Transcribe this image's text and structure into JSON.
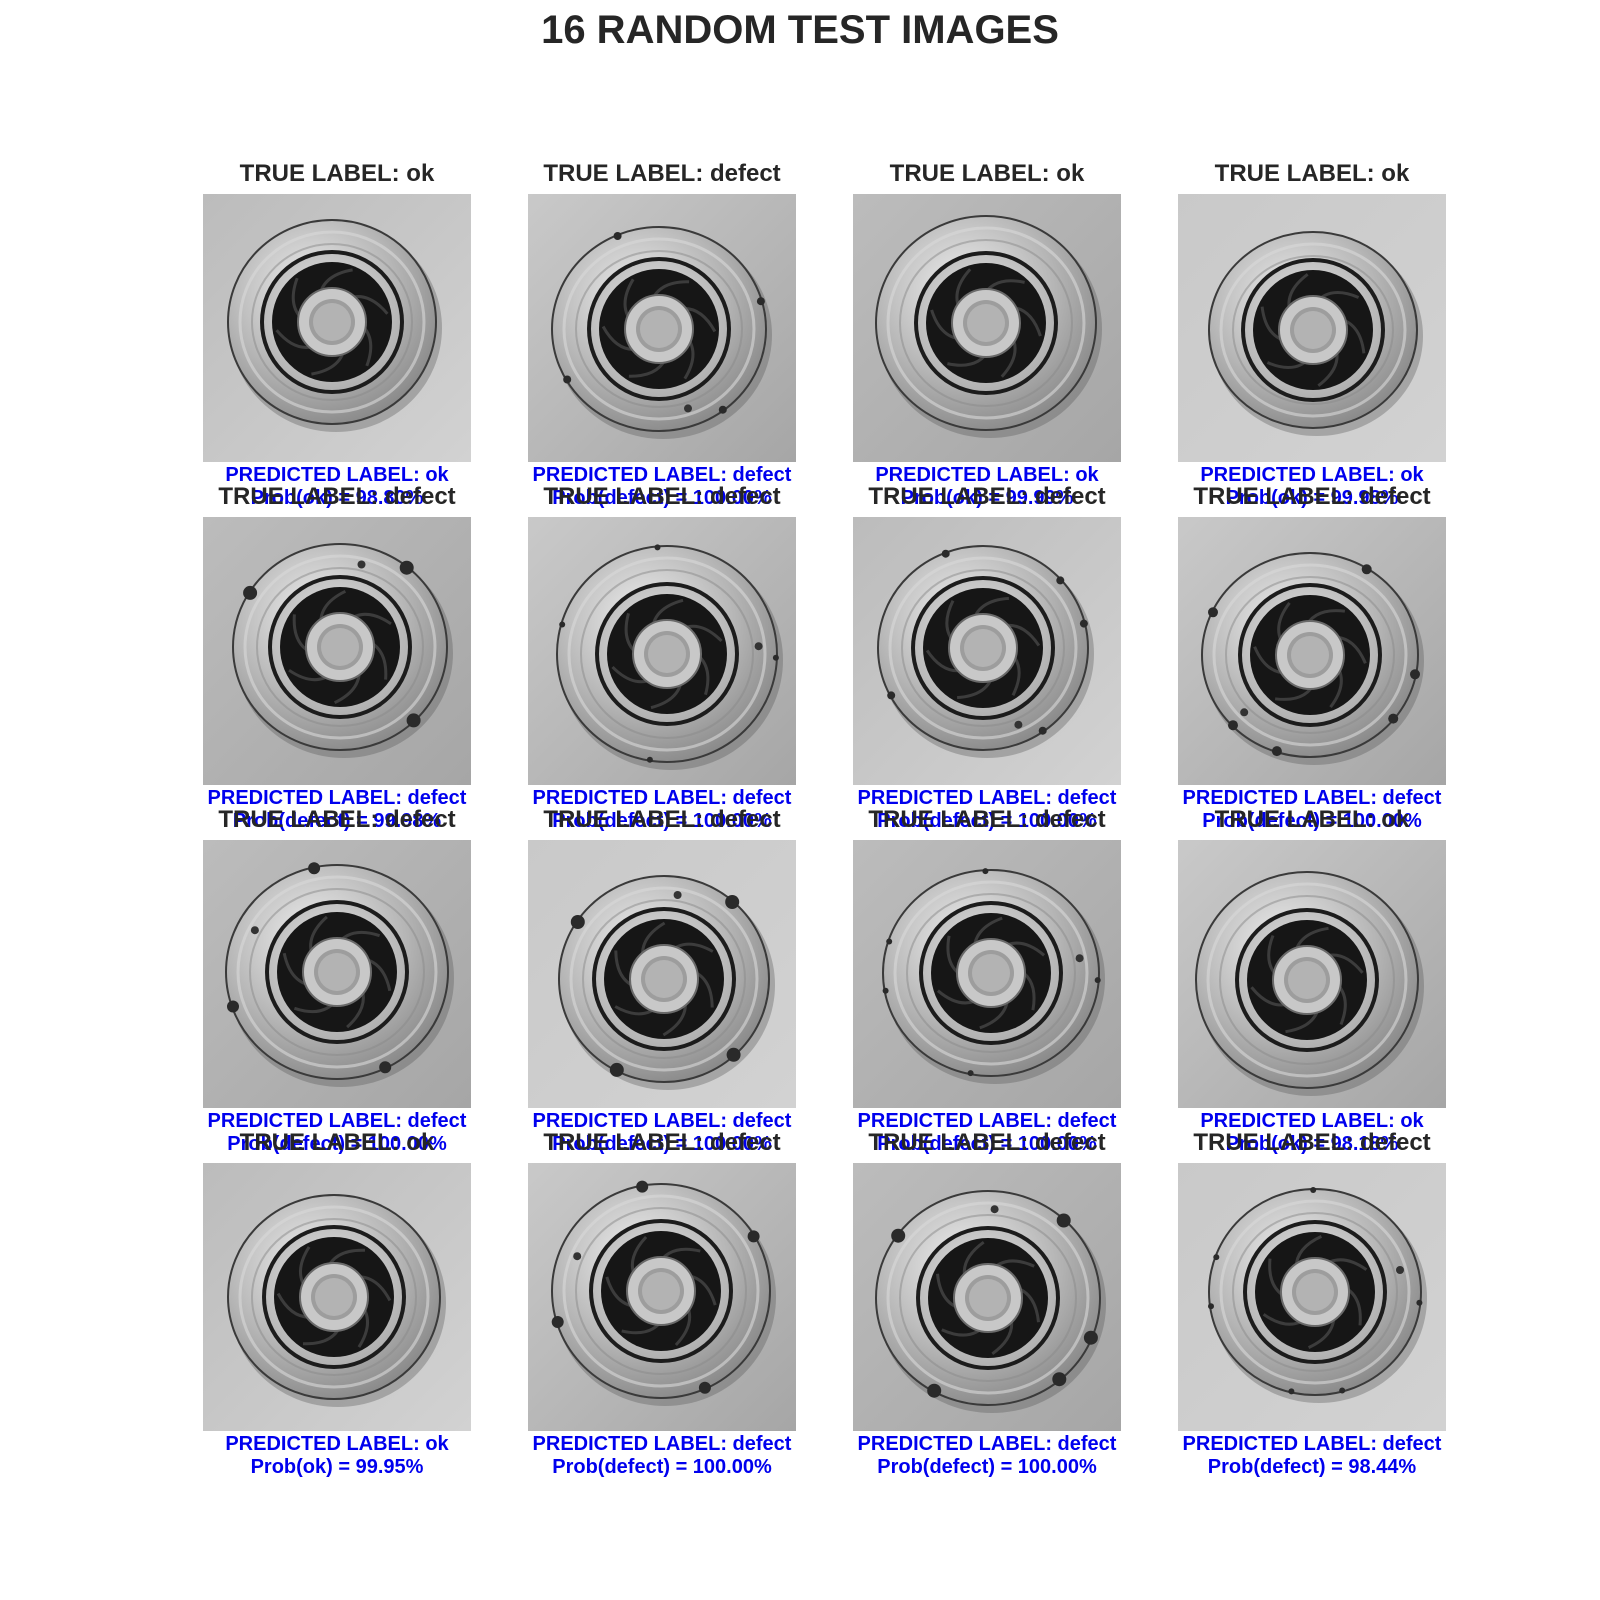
{
  "title": "16 RANDOM TEST IMAGES",
  "colors": {
    "title": "#262626",
    "true_label": "#262626",
    "predicted": "#0000ee"
  },
  "items": [
    {
      "true": "TRUE LABEL: ok",
      "pred": "PREDICTED LABEL: ok",
      "prob": "Prob(ok) = 98.80%",
      "defect": false
    },
    {
      "true": "TRUE LABEL: defect",
      "pred": "PREDICTED LABEL: defect",
      "prob": "Prob(defect) = 100.00%",
      "defect": true
    },
    {
      "true": "TRUE LABEL: ok",
      "pred": "PREDICTED LABEL: ok",
      "prob": "Prob(ok) = 99.99%",
      "defect": false
    },
    {
      "true": "TRUE LABEL: ok",
      "pred": "PREDICTED LABEL: ok",
      "prob": "Prob(ok) = 99.98%",
      "defect": false
    },
    {
      "true": "TRUE LABEL: defect",
      "pred": "PREDICTED LABEL: defect",
      "prob": "Prob(defect) = 99.98%",
      "defect": true
    },
    {
      "true": "TRUE LABEL: defect",
      "pred": "PREDICTED LABEL: defect",
      "prob": "Prob(defect) = 100.00%",
      "defect": true
    },
    {
      "true": "TRUE LABEL: defect",
      "pred": "PREDICTED LABEL: defect",
      "prob": "Prob(defect) = 100.00%",
      "defect": true
    },
    {
      "true": "TRUE LABEL: defect",
      "pred": "PREDICTED LABEL: defect",
      "prob": "Prob(defect) = 100.00%",
      "defect": true
    },
    {
      "true": "TRUE LABEL: defect",
      "pred": "PREDICTED LABEL: defect",
      "prob": "Prob(defect) = 100.00%",
      "defect": true
    },
    {
      "true": "TRUE LABEL: defect",
      "pred": "PREDICTED LABEL: defect",
      "prob": "Prob(defect) = 100.00%",
      "defect": true
    },
    {
      "true": "TRUE LABEL: defect",
      "pred": "PREDICTED LABEL: defect",
      "prob": "Prob(defect) = 100.00%",
      "defect": true
    },
    {
      "true": "TRUE LABEL: ok",
      "pred": "PREDICTED LABEL: ok",
      "prob": "Prob(ok) = 98.18%",
      "defect": false
    },
    {
      "true": "TRUE LABEL: ok",
      "pred": "PREDICTED LABEL: ok",
      "prob": "Prob(ok) = 99.95%",
      "defect": false
    },
    {
      "true": "TRUE LABEL: defect",
      "pred": "PREDICTED LABEL: defect",
      "prob": "Prob(defect) = 100.00%",
      "defect": true
    },
    {
      "true": "TRUE LABEL: defect",
      "pred": "PREDICTED LABEL: defect",
      "prob": "Prob(defect) = 100.00%",
      "defect": true
    },
    {
      "true": "TRUE LABEL: defect",
      "pred": "PREDICTED LABEL: defect",
      "prob": "Prob(defect) = 98.44%",
      "defect": true
    }
  ]
}
